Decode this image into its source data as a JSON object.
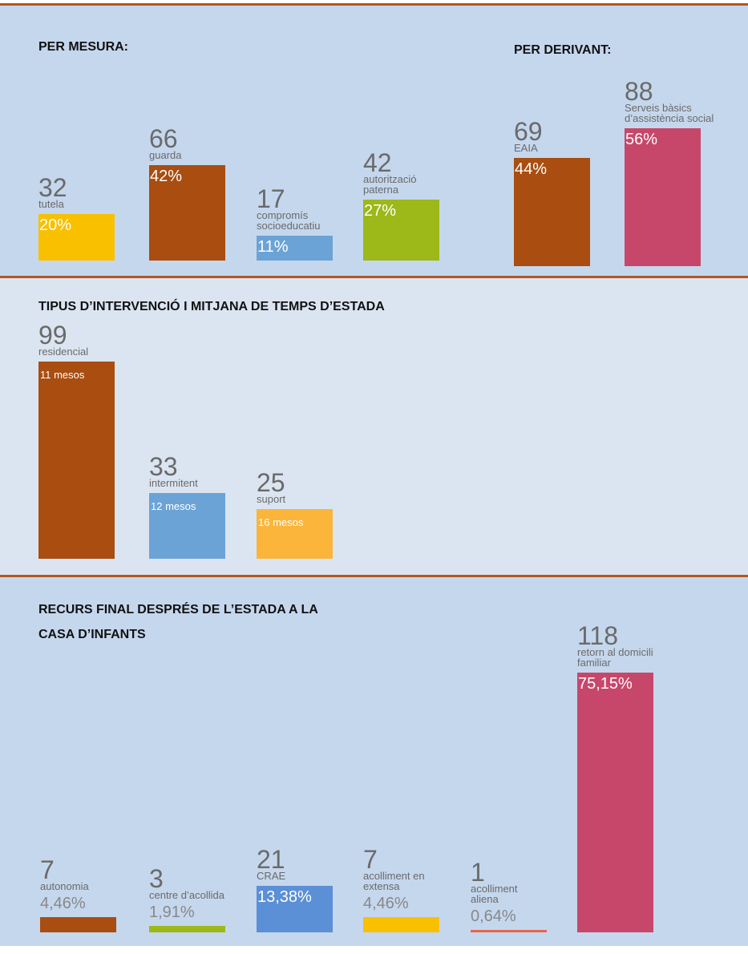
{
  "chart_data": [
    {
      "type": "bar",
      "title": "PER MESURA:",
      "categories": [
        "tutela",
        "guarda",
        "compromís socioeducatiu",
        "autorització paterna"
      ],
      "values": [
        32,
        66,
        17,
        42
      ],
      "percent_labels": [
        "20%",
        "42%",
        "11%",
        "27%"
      ],
      "colors": [
        "#f9c000",
        "#a94d10",
        "#6ba3d6",
        "#9cb819"
      ]
    },
    {
      "type": "bar",
      "title": "PER DERIVANT:",
      "categories": [
        "EAIA",
        "Serveis bàsics d’assistència social"
      ],
      "values": [
        69,
        88
      ],
      "percent_labels": [
        "44%",
        "56%"
      ],
      "colors": [
        "#a94d10",
        "#c7476a"
      ]
    },
    {
      "type": "bar",
      "title": "TIPUS D’INTERVENCIÓ I MITJANA DE TEMPS D’ESTADA",
      "categories": [
        "residencial",
        "intermitent",
        "suport"
      ],
      "values": [
        99,
        33,
        25
      ],
      "duration_labels": [
        "11 mesos",
        "12 mesos",
        "16 mesos"
      ],
      "colors": [
        "#a94d10",
        "#6ba3d6",
        "#fbb53a"
      ]
    },
    {
      "type": "bar",
      "title": "RECURS FINAL DESPRÉS DE L’ESTADA A LA CASA D’INFANTS",
      "categories": [
        "autonomia",
        "centre d’acollida",
        "CRAE",
        "acolliment en extensa",
        "acolliment aliena",
        "retorn al domicili familiar"
      ],
      "values": [
        7,
        3,
        21,
        7,
        1,
        118
      ],
      "percent_labels": [
        "4,46%",
        "1,91%",
        "13,38%",
        "4,46%",
        "0,64%",
        "75,15%"
      ],
      "colors": [
        "#a94d10",
        "#9cb819",
        "#5b8fd6",
        "#f9c000",
        "#e8654c",
        "#c7476a"
      ]
    }
  ]
}
